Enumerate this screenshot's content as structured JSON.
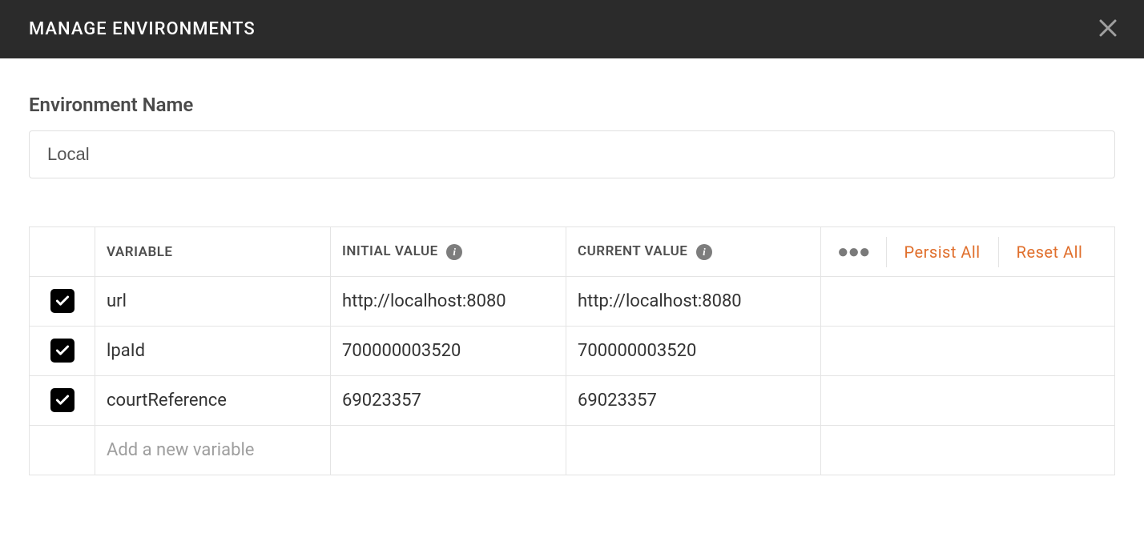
{
  "header": {
    "title": "MANAGE ENVIRONMENTS"
  },
  "environment": {
    "label": "Environment Name",
    "name": "Local"
  },
  "table": {
    "columns": {
      "variable": "VARIABLE",
      "initial_value": "INITIAL VALUE",
      "current_value": "CURRENT VALUE"
    },
    "actions": {
      "persist_all": "Persist All",
      "reset_all": "Reset All"
    },
    "rows": [
      {
        "enabled": true,
        "variable": "url",
        "initial_value": "http://localhost:8080",
        "current_value": "http://localhost:8080"
      },
      {
        "enabled": true,
        "variable": "lpaId",
        "initial_value": "700000003520",
        "current_value": "700000003520"
      },
      {
        "enabled": true,
        "variable": "courtReference",
        "initial_value": "69023357",
        "current_value": "69023357"
      }
    ],
    "new_row_placeholder": "Add a new variable"
  },
  "colors": {
    "header_bg": "#2b2b2b",
    "accent": "#e06f2c",
    "border": "#e4e4e4",
    "text": "#333333",
    "muted": "#9e9e9e",
    "checkbox_bg": "#000000"
  }
}
